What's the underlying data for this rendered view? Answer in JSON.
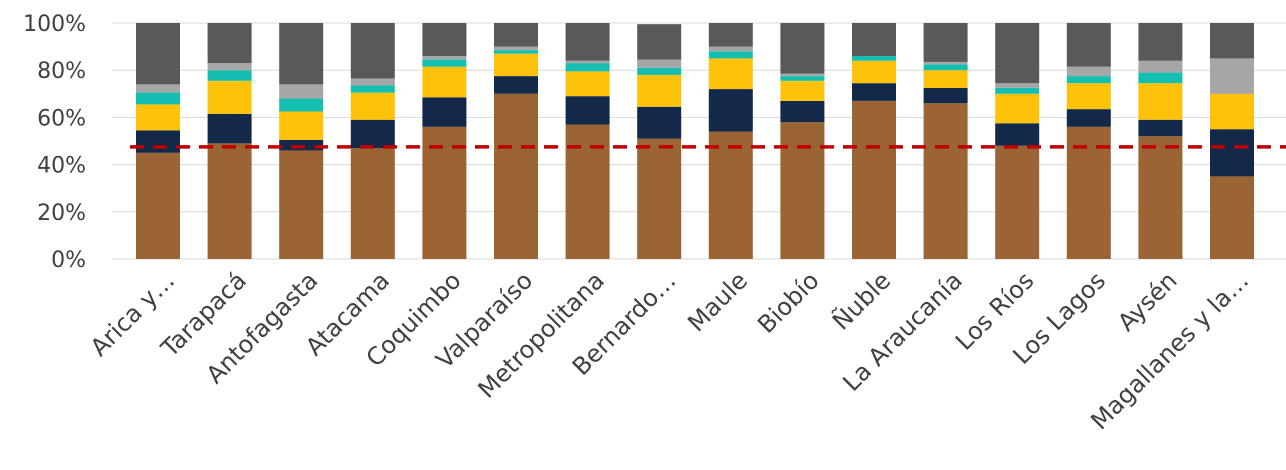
{
  "chart_data": {
    "type": "bar",
    "stacked": true,
    "categories": [
      "Arica y…",
      "Tarapacá",
      "Antofagasta",
      "Atacama",
      "Coquimbo",
      "Valparaíso",
      "Metropolitana",
      "Bernardo…",
      "Maule",
      "Biobío",
      "Ñuble",
      "La Araucanía",
      "Los Ríos",
      "Los Lagos",
      "Aysén",
      "Magallanes y la…"
    ],
    "y_ticks": [
      "0%",
      "20%",
      "40%",
      "60%",
      "80%",
      "100%"
    ],
    "ylim": [
      0,
      100
    ],
    "grid": true,
    "series": [
      {
        "color": "#9A6434",
        "values": [
          45,
          49,
          46,
          47,
          56,
          70,
          57,
          51,
          54,
          58,
          67,
          66,
          48,
          56,
          52,
          35
        ]
      },
      {
        "color": "#12294A",
        "values": [
          9.5,
          12.5,
          4.5,
          12,
          12.5,
          7.5,
          12,
          13.5,
          18,
          9,
          7.5,
          6.5,
          9.5,
          7.5,
          7,
          20
        ]
      },
      {
        "color": "#FFC20A",
        "values": [
          11,
          14,
          12,
          11.5,
          13,
          9.5,
          10.5,
          13.5,
          13,
          8.5,
          9.5,
          7.5,
          12.5,
          11,
          15.5,
          15
        ]
      },
      {
        "color": "#14BFB2",
        "values": [
          5,
          4.5,
          5.5,
          3,
          3,
          1.5,
          3.5,
          3,
          3,
          2,
          2,
          2.5,
          2.5,
          3,
          4.5,
          0
        ]
      },
      {
        "color": "#A6A6A6",
        "values": [
          3.5,
          3,
          6,
          3,
          1.5,
          1.5,
          1,
          3.5,
          2,
          1,
          0,
          1,
          2,
          4,
          5,
          15
        ]
      },
      {
        "color": "#595959",
        "values": [
          26,
          17,
          26,
          23.5,
          14,
          10,
          16,
          15,
          10,
          21.5,
          14,
          16.5,
          25.5,
          18.5,
          16,
          15
        ]
      }
    ],
    "reference_line": {
      "value": 47.5,
      "color": "#C00000",
      "style": "dashed"
    }
  }
}
